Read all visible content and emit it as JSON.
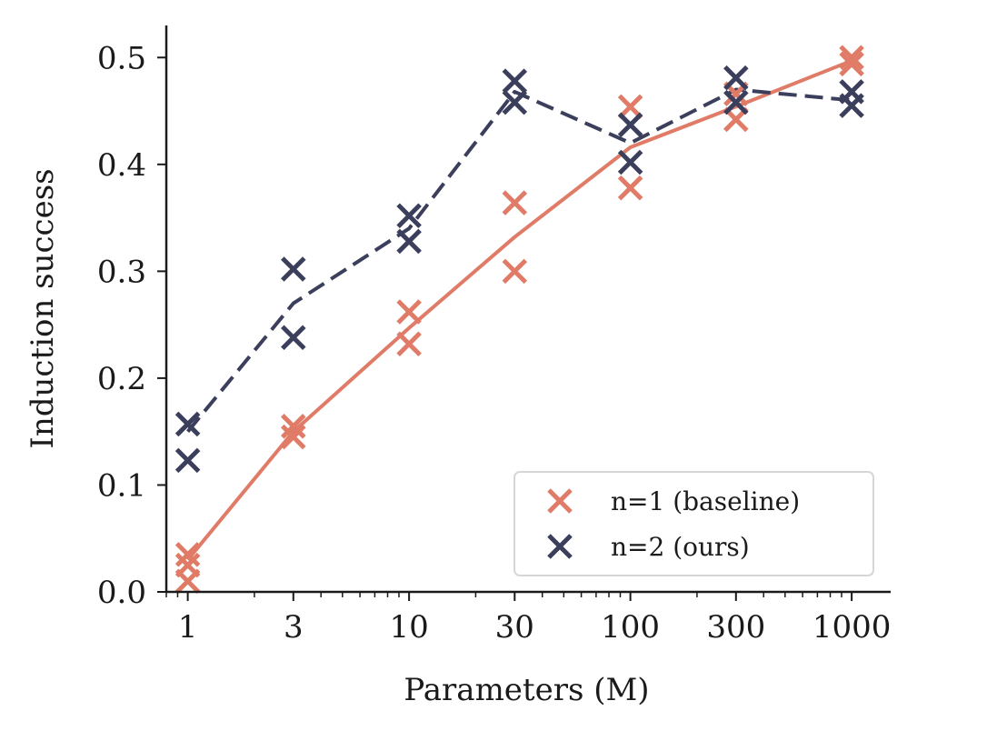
{
  "chart_data": {
    "type": "scatter",
    "title": "",
    "xlabel": "Parameters (M)",
    "ylabel": "Induction success",
    "xscale": "log",
    "xlim": [
      0.8,
      1500
    ],
    "ylim": [
      0.0,
      0.53
    ],
    "grid": false,
    "legend_position": "bottom-right",
    "x_ticks": [
      1,
      3,
      10,
      30,
      100,
      300,
      1000
    ],
    "x_tick_labels": [
      "1",
      "3",
      "10",
      "30",
      "100",
      "300",
      "1000"
    ],
    "y_ticks": [
      0.0,
      0.1,
      0.2,
      0.3,
      0.4,
      0.5
    ],
    "y_tick_labels": [
      "0.0",
      "0.1",
      "0.2",
      "0.3",
      "0.4",
      "0.5"
    ],
    "series": [
      {
        "name": "n=1 (baseline)",
        "color": "#e07b67",
        "line_style": "solid",
        "marker": "x",
        "points": [
          {
            "x": 1,
            "y": 0.035
          },
          {
            "x": 1,
            "y": 0.025
          },
          {
            "x": 1,
            "y": 0.01
          },
          {
            "x": 3,
            "y": 0.155
          },
          {
            "x": 3,
            "y": 0.145
          },
          {
            "x": 10,
            "y": 0.262
          },
          {
            "x": 10,
            "y": 0.232
          },
          {
            "x": 30,
            "y": 0.364
          },
          {
            "x": 30,
            "y": 0.3
          },
          {
            "x": 100,
            "y": 0.454
          },
          {
            "x": 100,
            "y": 0.378
          },
          {
            "x": 300,
            "y": 0.466
          },
          {
            "x": 300,
            "y": 0.442
          },
          {
            "x": 1000,
            "y": 0.5
          },
          {
            "x": 1000,
            "y": 0.494
          }
        ],
        "line": [
          {
            "x": 1,
            "y": 0.03
          },
          {
            "x": 3,
            "y": 0.15
          },
          {
            "x": 10,
            "y": 0.247
          },
          {
            "x": 30,
            "y": 0.332
          },
          {
            "x": 100,
            "y": 0.416
          },
          {
            "x": 300,
            "y": 0.454
          },
          {
            "x": 1000,
            "y": 0.497
          }
        ]
      },
      {
        "name": "n=2 (ours)",
        "color": "#3b3f5c",
        "line_style": "dashed",
        "marker": "x",
        "points": [
          {
            "x": 1,
            "y": 0.157
          },
          {
            "x": 1,
            "y": 0.123
          },
          {
            "x": 3,
            "y": 0.302
          },
          {
            "x": 3,
            "y": 0.238
          },
          {
            "x": 10,
            "y": 0.352
          },
          {
            "x": 10,
            "y": 0.328
          },
          {
            "x": 30,
            "y": 0.478
          },
          {
            "x": 30,
            "y": 0.458
          },
          {
            "x": 100,
            "y": 0.437
          },
          {
            "x": 100,
            "y": 0.402
          },
          {
            "x": 300,
            "y": 0.481
          },
          {
            "x": 300,
            "y": 0.458
          },
          {
            "x": 1000,
            "y": 0.468
          },
          {
            "x": 1000,
            "y": 0.455
          }
        ],
        "line": [
          {
            "x": 1,
            "y": 0.15
          },
          {
            "x": 3,
            "y": 0.27
          },
          {
            "x": 10,
            "y": 0.34
          },
          {
            "x": 30,
            "y": 0.468
          },
          {
            "x": 100,
            "y": 0.42
          },
          {
            "x": 300,
            "y": 0.47
          },
          {
            "x": 1000,
            "y": 0.46
          }
        ]
      }
    ]
  }
}
